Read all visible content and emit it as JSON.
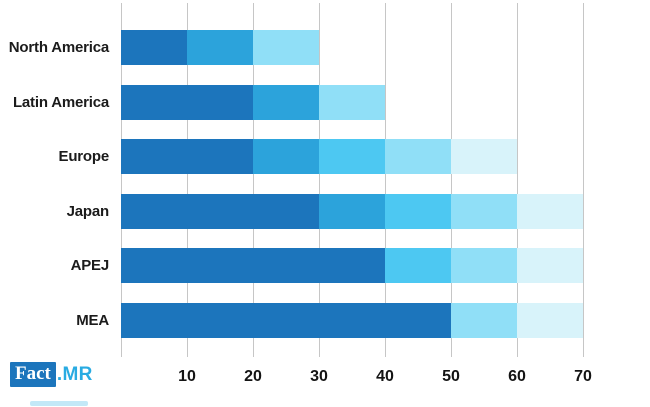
{
  "logo": {
    "fact_label": "Fact",
    "mr_label": ".MR",
    "box_color": "#1C75BC",
    "mr_color": "#29ABE2"
  },
  "colors": {
    "segment_dark": "#1C75BC",
    "segment_medium": "#2CA3DB",
    "segment_bright": "#4DC8F2",
    "segment_light": "#90DFF7",
    "segment_pale": "#D8F3FA",
    "gridline": "#C6C6C6",
    "label_text": "#1B1B1B"
  },
  "chart_data": {
    "type": "bar",
    "orientation": "horizontal",
    "stacked": true,
    "title": "",
    "xlabel": "",
    "ylabel": "",
    "legend": false,
    "grid": true,
    "categories": [
      "North America",
      "Latin America",
      "Europe",
      "Japan",
      "APEJ",
      "MEA"
    ],
    "series": [
      {
        "name": "segment-1-dark-blue",
        "color": "#1C75BC",
        "values": [
          10,
          20,
          20,
          30,
          40,
          50
        ]
      },
      {
        "name": "segment-2-medium-blue",
        "color": "#2CA3DB",
        "values": [
          10,
          10,
          10,
          10,
          0,
          0
        ]
      },
      {
        "name": "segment-3-bright-cyan",
        "color": "#4DC8F2",
        "values": [
          0,
          0,
          10,
          10,
          10,
          0
        ]
      },
      {
        "name": "segment-4-light-cyan",
        "color": "#90DFF7",
        "values": [
          10,
          10,
          10,
          10,
          10,
          10
        ]
      },
      {
        "name": "segment-5-pale-cyan",
        "color": "#D8F3FA",
        "values": [
          0,
          0,
          10,
          10,
          10,
          10
        ]
      }
    ],
    "totals": [
      30,
      40,
      60,
      70,
      70,
      70
    ],
    "xlim": [
      0,
      80
    ],
    "gridline_values": [
      0,
      10,
      20,
      30,
      40,
      50,
      60,
      70
    ],
    "xticks": [
      10,
      20,
      30,
      40,
      50,
      60,
      70
    ],
    "xtick_labels": [
      "10",
      "20",
      "30",
      "40",
      "50",
      "60",
      "70"
    ]
  }
}
